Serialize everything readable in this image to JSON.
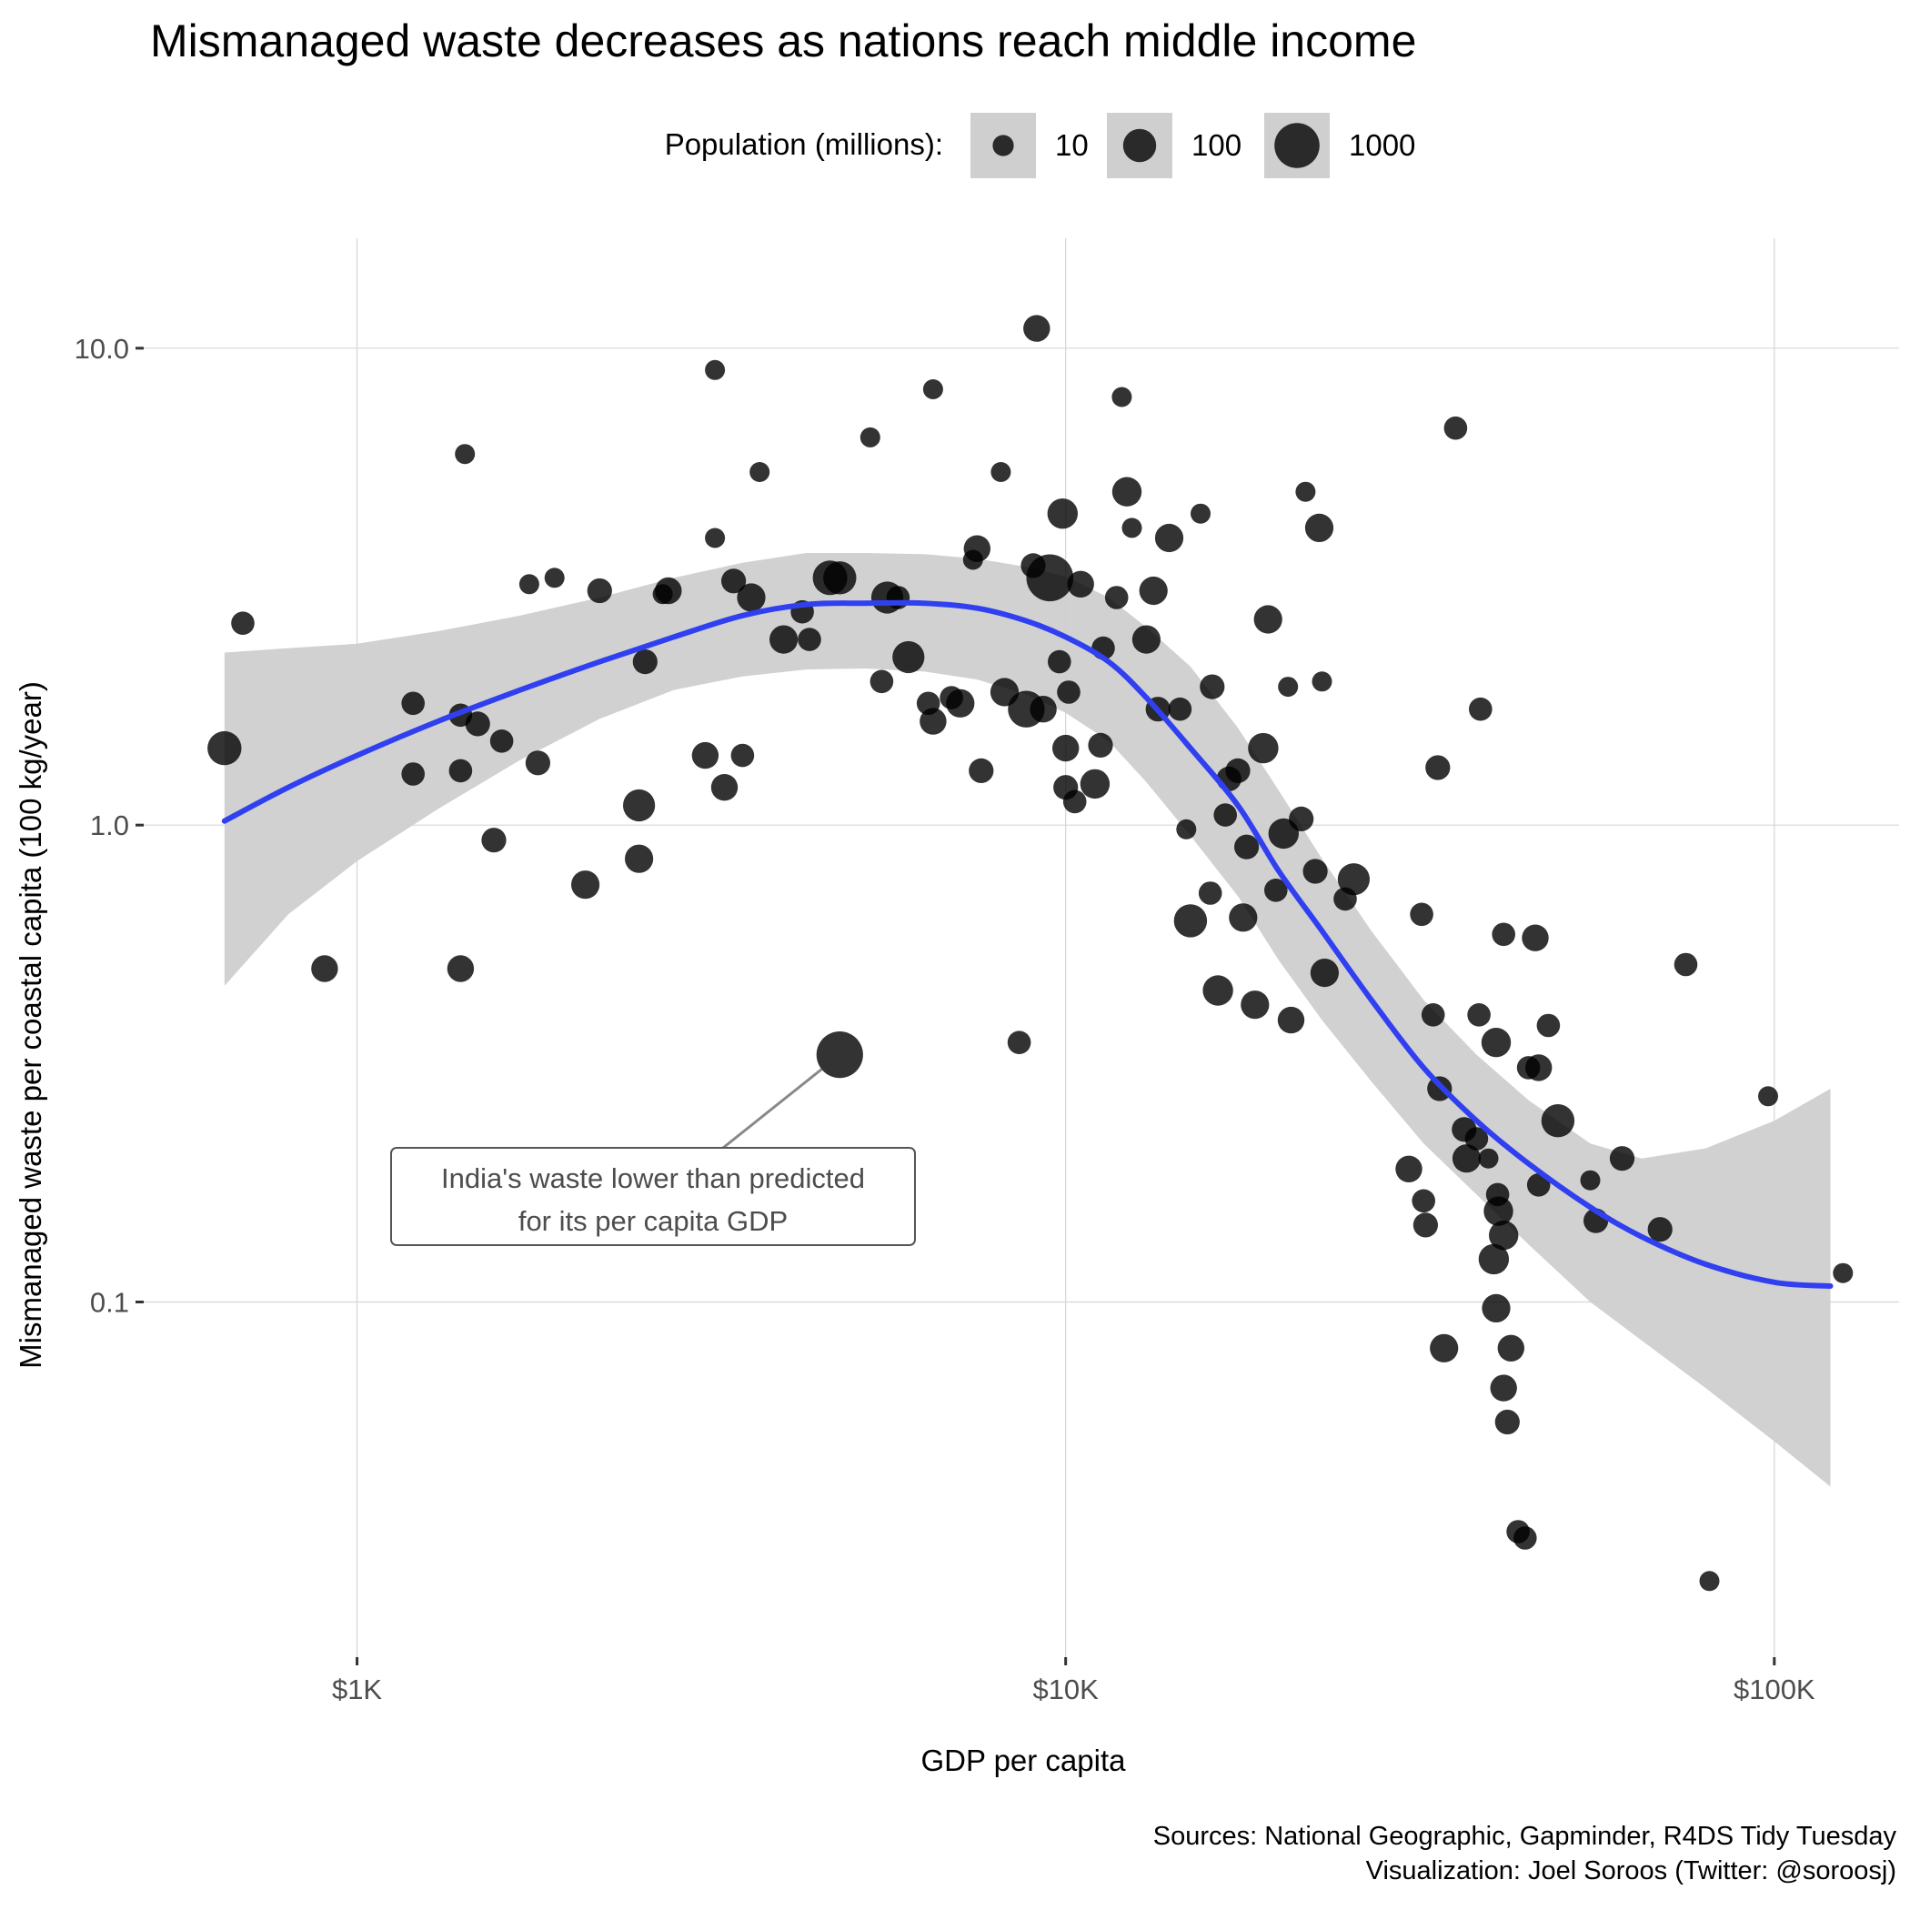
{
  "chart_data": {
    "type": "scatter",
    "title": "Mismanaged waste decreases as nations reach middle income",
    "xlabel": "GDP per capita",
    "ylabel": "Mismanaged waste per coastal capita (100 kg/year)",
    "x_scale": "log10",
    "y_scale": "log10",
    "xlim": [
      500,
      150000
    ],
    "ylim": [
      0.018,
      17
    ],
    "x_ticks": [
      {
        "value": 1000,
        "label": "$1K"
      },
      {
        "value": 10000,
        "label": "$10K"
      },
      {
        "value": 100000,
        "label": "$100K"
      }
    ],
    "y_ticks": [
      {
        "value": 10,
        "label": "10.0"
      },
      {
        "value": 1,
        "label": "1.0"
      },
      {
        "value": 0.1,
        "label": "0.1"
      }
    ],
    "grid": true,
    "legend": {
      "title": "Population (millions):",
      "position": "top",
      "entries": [
        {
          "label": "10",
          "value": 10
        },
        {
          "label": "100",
          "value": 100
        },
        {
          "label": "1000",
          "value": 1000
        }
      ]
    },
    "caption": [
      "Sources: National Geographic, Gapminder, R4DS Tidy Tuesday",
      "Visualization: Joel Soroos (Twitter: @soroosj)"
    ],
    "annotation": {
      "lines": [
        "India's waste lower than predicted",
        "for its per capita GDP"
      ],
      "point": {
        "x": 4800,
        "y": 0.33
      }
    },
    "colors": {
      "points": "#000000",
      "smooth": "#3040f0",
      "ribbon": "#cfcfcf"
    },
    "smooth": {
      "x": [
        650,
        800,
        1000,
        1300,
        1700,
        2200,
        2800,
        3500,
        4300,
        5200,
        6300,
        7500,
        8800,
        10000,
        11500,
        13000,
        15000,
        17500,
        20000,
        23000,
        27000,
        32000,
        38000,
        45000,
        55000,
        65000,
        80000,
        100000,
        120000
      ],
      "y": [
        1.02,
        1.2,
        1.4,
        1.65,
        1.92,
        2.2,
        2.48,
        2.75,
        2.9,
        2.92,
        2.92,
        2.85,
        2.68,
        2.48,
        2.2,
        1.85,
        1.45,
        1.1,
        0.8,
        0.6,
        0.43,
        0.31,
        0.24,
        0.195,
        0.158,
        0.137,
        0.12,
        0.11,
        0.108
      ],
      "lower": [
        0.46,
        0.65,
        0.84,
        1.08,
        1.37,
        1.67,
        1.92,
        2.05,
        2.12,
        2.13,
        2.1,
        2.02,
        1.88,
        1.72,
        1.5,
        1.23,
        0.95,
        0.71,
        0.52,
        0.39,
        0.29,
        0.215,
        0.168,
        0.132,
        0.1,
        0.083,
        0.066,
        0.051,
        0.041
      ],
      "upper": [
        2.3,
        2.35,
        2.4,
        2.55,
        2.75,
        3.0,
        3.3,
        3.55,
        3.72,
        3.72,
        3.7,
        3.62,
        3.48,
        3.32,
        3.0,
        2.6,
        2.15,
        1.6,
        1.18,
        0.85,
        0.6,
        0.43,
        0.33,
        0.265,
        0.215,
        0.2,
        0.21,
        0.24,
        0.28
      ]
    },
    "points": [
      {
        "x": 650,
        "y": 1.45,
        "pop": 120
      },
      {
        "x": 690,
        "y": 2.65,
        "pop": 15
      },
      {
        "x": 900,
        "y": 0.5,
        "pop": 30
      },
      {
        "x": 1200,
        "y": 1.8,
        "pop": 15
      },
      {
        "x": 1200,
        "y": 1.28,
        "pop": 15
      },
      {
        "x": 1400,
        "y": 0.5,
        "pop": 30
      },
      {
        "x": 1400,
        "y": 1.3,
        "pop": 15
      },
      {
        "x": 1400,
        "y": 1.7,
        "pop": 15
      },
      {
        "x": 1420,
        "y": 6.0,
        "pop": 8
      },
      {
        "x": 1480,
        "y": 1.63,
        "pop": 20
      },
      {
        "x": 1560,
        "y": 0.93,
        "pop": 20
      },
      {
        "x": 1600,
        "y": 1.5,
        "pop": 15
      },
      {
        "x": 1750,
        "y": 3.2,
        "pop": 8
      },
      {
        "x": 1800,
        "y": 1.35,
        "pop": 20
      },
      {
        "x": 1900,
        "y": 3.3,
        "pop": 8
      },
      {
        "x": 2100,
        "y": 0.75,
        "pop": 40
      },
      {
        "x": 2200,
        "y": 3.1,
        "pop": 20
      },
      {
        "x": 2500,
        "y": 1.1,
        "pop": 80
      },
      {
        "x": 2500,
        "y": 0.85,
        "pop": 40
      },
      {
        "x": 2550,
        "y": 2.2,
        "pop": 20
      },
      {
        "x": 2700,
        "y": 3.05,
        "pop": 8
      },
      {
        "x": 2750,
        "y": 3.1,
        "pop": 30
      },
      {
        "x": 3100,
        "y": 1.4,
        "pop": 30
      },
      {
        "x": 3200,
        "y": 9.0,
        "pop": 8
      },
      {
        "x": 3200,
        "y": 4.0,
        "pop": 8
      },
      {
        "x": 3300,
        "y": 1.2,
        "pop": 30
      },
      {
        "x": 3400,
        "y": 3.25,
        "pop": 20
      },
      {
        "x": 3500,
        "y": 1.4,
        "pop": 15
      },
      {
        "x": 3600,
        "y": 3.0,
        "pop": 40
      },
      {
        "x": 3700,
        "y": 5.5,
        "pop": 8
      },
      {
        "x": 4000,
        "y": 2.45,
        "pop": 40
      },
      {
        "x": 4250,
        "y": 2.8,
        "pop": 15
      },
      {
        "x": 4350,
        "y": 2.45,
        "pop": 15
      },
      {
        "x": 4800,
        "y": 0.33,
        "pop": 1300
      },
      {
        "x": 4650,
        "y": 3.3,
        "pop": 130
      },
      {
        "x": 4800,
        "y": 3.3,
        "pop": 100
      },
      {
        "x": 5300,
        "y": 6.5,
        "pop": 8
      },
      {
        "x": 5500,
        "y": 2.0,
        "pop": 15
      },
      {
        "x": 5600,
        "y": 3.0,
        "pop": 80
      },
      {
        "x": 5800,
        "y": 3.0,
        "pop": 15
      },
      {
        "x": 6000,
        "y": 2.25,
        "pop": 80
      },
      {
        "x": 6400,
        "y": 1.8,
        "pop": 15
      },
      {
        "x": 6500,
        "y": 8.2,
        "pop": 8
      },
      {
        "x": 6500,
        "y": 1.65,
        "pop": 30
      },
      {
        "x": 6900,
        "y": 1.85,
        "pop": 15
      },
      {
        "x": 7100,
        "y": 1.8,
        "pop": 40
      },
      {
        "x": 7400,
        "y": 3.6,
        "pop": 8
      },
      {
        "x": 7500,
        "y": 3.8,
        "pop": 30
      },
      {
        "x": 7600,
        "y": 1.3,
        "pop": 20
      },
      {
        "x": 8100,
        "y": 5.5,
        "pop": 8
      },
      {
        "x": 8200,
        "y": 1.9,
        "pop": 40
      },
      {
        "x": 8600,
        "y": 0.35,
        "pop": 15
      },
      {
        "x": 8800,
        "y": 1.75,
        "pop": 200
      },
      {
        "x": 9000,
        "y": 3.5,
        "pop": 20
      },
      {
        "x": 9100,
        "y": 11.0,
        "pop": 30
      },
      {
        "x": 9300,
        "y": 1.75,
        "pop": 30
      },
      {
        "x": 9500,
        "y": 3.3,
        "pop": 1400
      },
      {
        "x": 9800,
        "y": 2.2,
        "pop": 15
      },
      {
        "x": 9900,
        "y": 4.5,
        "pop": 60
      },
      {
        "x": 10000,
        "y": 1.45,
        "pop": 30
      },
      {
        "x": 10000,
        "y": 1.2,
        "pop": 20
      },
      {
        "x": 10100,
        "y": 1.9,
        "pop": 15
      },
      {
        "x": 10300,
        "y": 1.12,
        "pop": 15
      },
      {
        "x": 10500,
        "y": 3.2,
        "pop": 30
      },
      {
        "x": 11000,
        "y": 1.22,
        "pop": 50
      },
      {
        "x": 11200,
        "y": 1.47,
        "pop": 20
      },
      {
        "x": 11300,
        "y": 2.35,
        "pop": 15
      },
      {
        "x": 11800,
        "y": 3.0,
        "pop": 15
      },
      {
        "x": 12000,
        "y": 7.9,
        "pop": 8
      },
      {
        "x": 12200,
        "y": 5.0,
        "pop": 50
      },
      {
        "x": 12400,
        "y": 4.2,
        "pop": 8
      },
      {
        "x": 13000,
        "y": 2.45,
        "pop": 40
      },
      {
        "x": 13300,
        "y": 3.1,
        "pop": 40
      },
      {
        "x": 13500,
        "y": 1.75,
        "pop": 20
      },
      {
        "x": 14000,
        "y": 4.0,
        "pop": 40
      },
      {
        "x": 14500,
        "y": 1.75,
        "pop": 15
      },
      {
        "x": 14800,
        "y": 0.98,
        "pop": 8
      },
      {
        "x": 15000,
        "y": 0.63,
        "pop": 100
      },
      {
        "x": 15500,
        "y": 4.5,
        "pop": 8
      },
      {
        "x": 16000,
        "y": 0.72,
        "pop": 15
      },
      {
        "x": 16100,
        "y": 1.95,
        "pop": 20
      },
      {
        "x": 16400,
        "y": 0.45,
        "pop": 60
      },
      {
        "x": 16800,
        "y": 1.05,
        "pop": 15
      },
      {
        "x": 17000,
        "y": 1.25,
        "pop": 20
      },
      {
        "x": 17500,
        "y": 1.3,
        "pop": 20
      },
      {
        "x": 17800,
        "y": 0.64,
        "pop": 40
      },
      {
        "x": 18000,
        "y": 0.9,
        "pop": 20
      },
      {
        "x": 18500,
        "y": 0.42,
        "pop": 40
      },
      {
        "x": 19000,
        "y": 1.45,
        "pop": 60
      },
      {
        "x": 19300,
        "y": 2.7,
        "pop": 40
      },
      {
        "x": 19800,
        "y": 0.73,
        "pop": 15
      },
      {
        "x": 20300,
        "y": 0.96,
        "pop": 60
      },
      {
        "x": 20600,
        "y": 1.95,
        "pop": 8
      },
      {
        "x": 20800,
        "y": 0.39,
        "pop": 30
      },
      {
        "x": 21500,
        "y": 1.03,
        "pop": 20
      },
      {
        "x": 21800,
        "y": 5.0,
        "pop": 8
      },
      {
        "x": 22500,
        "y": 0.8,
        "pop": 20
      },
      {
        "x": 22800,
        "y": 4.2,
        "pop": 40
      },
      {
        "x": 23000,
        "y": 2.0,
        "pop": 8
      },
      {
        "x": 23200,
        "y": 0.49,
        "pop": 40
      },
      {
        "x": 24800,
        "y": 0.7,
        "pop": 15
      },
      {
        "x": 25500,
        "y": 0.77,
        "pop": 80
      },
      {
        "x": 30500,
        "y": 0.19,
        "pop": 30
      },
      {
        "x": 31800,
        "y": 0.65,
        "pop": 15
      },
      {
        "x": 32000,
        "y": 0.163,
        "pop": 15
      },
      {
        "x": 32200,
        "y": 0.145,
        "pop": 20
      },
      {
        "x": 33000,
        "y": 0.4,
        "pop": 15
      },
      {
        "x": 33500,
        "y": 1.32,
        "pop": 20
      },
      {
        "x": 33700,
        "y": 0.28,
        "pop": 20
      },
      {
        "x": 34200,
        "y": 0.08,
        "pop": 40
      },
      {
        "x": 35500,
        "y": 6.8,
        "pop": 15
      },
      {
        "x": 36500,
        "y": 0.23,
        "pop": 20
      },
      {
        "x": 36800,
        "y": 0.2,
        "pop": 40
      },
      {
        "x": 38000,
        "y": 0.22,
        "pop": 15
      },
      {
        "x": 38300,
        "y": 0.4,
        "pop": 15
      },
      {
        "x": 38500,
        "y": 1.75,
        "pop": 15
      },
      {
        "x": 39500,
        "y": 0.2,
        "pop": 8
      },
      {
        "x": 40200,
        "y": 0.123,
        "pop": 60
      },
      {
        "x": 40500,
        "y": 0.097,
        "pop": 40
      },
      {
        "x": 40800,
        "y": 0.155,
        "pop": 50
      },
      {
        "x": 41500,
        "y": 0.138,
        "pop": 50
      },
      {
        "x": 40500,
        "y": 0.35,
        "pop": 50
      },
      {
        "x": 40700,
        "y": 0.168,
        "pop": 15
      },
      {
        "x": 41500,
        "y": 0.59,
        "pop": 15
      },
      {
        "x": 41500,
        "y": 0.066,
        "pop": 30
      },
      {
        "x": 42000,
        "y": 0.056,
        "pop": 20
      },
      {
        "x": 42500,
        "y": 0.08,
        "pop": 30
      },
      {
        "x": 43500,
        "y": 0.033,
        "pop": 15
      },
      {
        "x": 44500,
        "y": 0.032,
        "pop": 15
      },
      {
        "x": 45000,
        "y": 0.31,
        "pop": 15
      },
      {
        "x": 46000,
        "y": 0.58,
        "pop": 30
      },
      {
        "x": 46500,
        "y": 0.31,
        "pop": 30
      },
      {
        "x": 46500,
        "y": 0.176,
        "pop": 15
      },
      {
        "x": 48000,
        "y": 0.38,
        "pop": 15
      },
      {
        "x": 49500,
        "y": 0.24,
        "pop": 100
      },
      {
        "x": 55000,
        "y": 0.18,
        "pop": 8
      },
      {
        "x": 56000,
        "y": 0.148,
        "pop": 20
      },
      {
        "x": 61000,
        "y": 0.2,
        "pop": 20
      },
      {
        "x": 69000,
        "y": 0.142,
        "pop": 20
      },
      {
        "x": 75000,
        "y": 0.51,
        "pop": 15
      },
      {
        "x": 81000,
        "y": 0.026,
        "pop": 8
      },
      {
        "x": 98000,
        "y": 0.27,
        "pop": 8
      },
      {
        "x": 125000,
        "y": 0.115,
        "pop": 8
      }
    ]
  }
}
